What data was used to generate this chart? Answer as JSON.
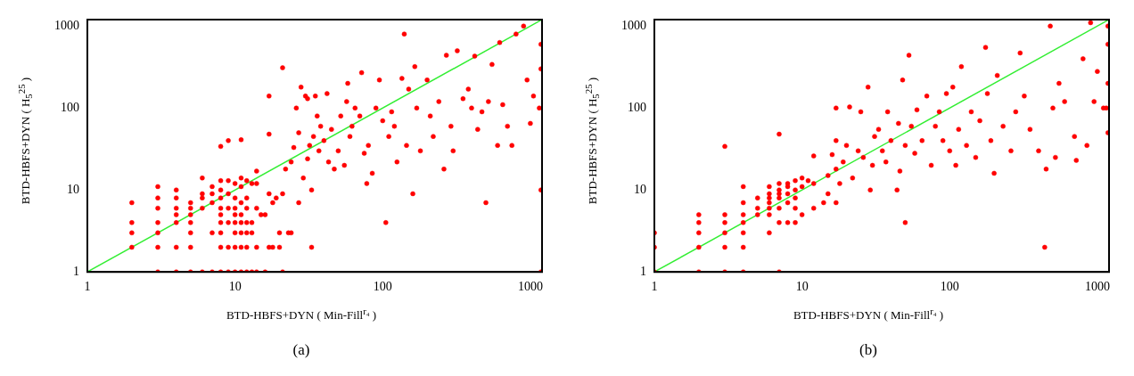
{
  "chart_data": [
    {
      "type": "scatter",
      "xlabel": "BTD-HBFS+DYN ( Min-Fill$^{r₄}$ )",
      "ylabel": "BTD-HBFS+DYN ( H$_{5}$$^{25}$ )",
      "annotations": [
        "(a)"
      ],
      "log": "xy",
      "xlim": [
        1,
        1200
      ],
      "ylim": [
        1,
        1200
      ],
      "xticks": [
        1,
        10,
        100,
        1000
      ],
      "yticks": [
        1,
        10,
        100,
        1000
      ],
      "marker": "circle",
      "series": [
        {
          "type": "scatter",
          "color": "#ff0000",
          "x": [
            2,
            2,
            2,
            2,
            3,
            3,
            3,
            3,
            3,
            3,
            3,
            4,
            4,
            4,
            4,
            4,
            4,
            4,
            5,
            5,
            5,
            5,
            5,
            5,
            5,
            6,
            6,
            6,
            6,
            6,
            7,
            7,
            7,
            7,
            7,
            8,
            8,
            8,
            8,
            8,
            8,
            8,
            8,
            8,
            8,
            9,
            9,
            9,
            9,
            9,
            9,
            9,
            10,
            10,
            10,
            10,
            10,
            10,
            10,
            10,
            11,
            11,
            11,
            11,
            11,
            11,
            11,
            11,
            11,
            12,
            12,
            12,
            12,
            12,
            12,
            12,
            13,
            13,
            13,
            13,
            14,
            14,
            14,
            14,
            14,
            15,
            16,
            16,
            17,
            17,
            17,
            17,
            18,
            18,
            19,
            20,
            20,
            21,
            21,
            21,
            22,
            23,
            24,
            24,
            25,
            26,
            27,
            27,
            28,
            29,
            30,
            31,
            31,
            32,
            33,
            33,
            34,
            35,
            36,
            37,
            38,
            40,
            42,
            43,
            45,
            47,
            50,
            52,
            55,
            57,
            58,
            60,
            62,
            65,
            70,
            72,
            75,
            78,
            80,
            85,
            90,
            95,
            100,
            105,
            110,
            115,
            120,
            125,
            135,
            140,
            145,
            150,
            160,
            165,
            170,
            180,
            200,
            210,
            220,
            240,
            260,
            270,
            290,
            300,
            320,
            350,
            380,
            400,
            420,
            440,
            470,
            500,
            520,
            550,
            600,
            620,
            650,
            700,
            750,
            800,
            900,
            950,
            1000,
            1050,
            1150,
            1180,
            1180,
            1180,
            1180
          ],
          "values": [
            2,
            3,
            4,
            7,
            2,
            3,
            4,
            6,
            8,
            11,
            1,
            1,
            2,
            4,
            5,
            6,
            8,
            10,
            1,
            2,
            3,
            4,
            5,
            6,
            7,
            1,
            6,
            8,
            9,
            14,
            1,
            3,
            7,
            9,
            11,
            1,
            2,
            3,
            4,
            5,
            6,
            8,
            10,
            13,
            34,
            1,
            2,
            4,
            6,
            9,
            13,
            40,
            1,
            2,
            3,
            4,
            5,
            6,
            8,
            12,
            1,
            2,
            3,
            4,
            5,
            7,
            11,
            14,
            41,
            1,
            2,
            3,
            4,
            6,
            8,
            13,
            1,
            3,
            4,
            12,
            1,
            2,
            6,
            12,
            17,
            5,
            1,
            5,
            2,
            9,
            48,
            140,
            2,
            7,
            8,
            2,
            3,
            1,
            9,
            310,
            18,
            3,
            3,
            22,
            33,
            100,
            7,
            50,
            180,
            14,
            140,
            24,
            130,
            35,
            2,
            10,
            45,
            140,
            80,
            30,
            60,
            40,
            150,
            22,
            55,
            18,
            30,
            80,
            20,
            120,
            200,
            45,
            60,
            100,
            80,
            270,
            28,
            12,
            35,
            16,
            100,
            220,
            70,
            4,
            45,
            90,
            60,
            22,
            230,
            800,
            35,
            170,
            9,
            320,
            100,
            30,
            220,
            80,
            45,
            120,
            18,
            440,
            60,
            30,
            500,
            130,
            170,
            100,
            430,
            55,
            90,
            7,
            120,
            340,
            35,
            630,
            110,
            60,
            35,
            800,
            1000,
            220,
            65,
            140,
            100,
            300,
            600,
            10,
            1
          ]
        },
        {
          "type": "line",
          "marker": "none",
          "color": "#33ee33",
          "x": [
            1,
            1200
          ],
          "values": [
            1,
            1200
          ]
        }
      ]
    },
    {
      "type": "scatter",
      "xlabel": "BTD-HBFS+DYN ( Min-Fill$^{r₄}$ )",
      "ylabel": "BTD-HBFS+DYN ( H$_{5}$$^{25}$ )",
      "annotations": [
        "(b)"
      ],
      "log": "xy",
      "xlim": [
        1,
        1200
      ],
      "ylim": [
        1,
        1200
      ],
      "xticks": [
        1,
        10,
        100,
        1000
      ],
      "yticks": [
        1,
        10,
        100,
        1000
      ],
      "marker": "circle",
      "series": [
        {
          "type": "scatter",
          "color": "#ff0000",
          "x": [
            1,
            1,
            1,
            2,
            2,
            2,
            2,
            2,
            3,
            3,
            3,
            3,
            3,
            3,
            4,
            4,
            4,
            4,
            4,
            4,
            4,
            5,
            5,
            5,
            6,
            6,
            6,
            6,
            6,
            6,
            6,
            7,
            7,
            7,
            7,
            7,
            7,
            7,
            7,
            8,
            8,
            8,
            8,
            8,
            9,
            9,
            9,
            9,
            9,
            10,
            10,
            10,
            11,
            12,
            12,
            12,
            14,
            15,
            15,
            16,
            17,
            17,
            17,
            17,
            18,
            19,
            20,
            21,
            22,
            24,
            25,
            26,
            28,
            29,
            30,
            31,
            33,
            35,
            37,
            38,
            40,
            44,
            45,
            46,
            48,
            50,
            50,
            53,
            55,
            58,
            60,
            65,
            70,
            75,
            80,
            85,
            90,
            95,
            100,
            105,
            110,
            115,
            120,
            130,
            140,
            150,
            160,
            175,
            180,
            190,
            200,
            210,
            230,
            260,
            280,
            300,
            320,
            350,
            400,
            440,
            450,
            480,
            500,
            520,
            550,
            600,
            700,
            720,
            800,
            850,
            900,
            950,
            1000,
            1100,
            1150,
            1180,
            1180,
            1180,
            1180
          ],
          "values": [
            1,
            2,
            3,
            1,
            2,
            3,
            4,
            5,
            1,
            2,
            3,
            4,
            5,
            34,
            1,
            2,
            3,
            4,
            5,
            7,
            11,
            5,
            6,
            8,
            3,
            5,
            6,
            7,
            8,
            9,
            11,
            1,
            4,
            6,
            8,
            9,
            10,
            12,
            48,
            4,
            7,
            9,
            11,
            12,
            4,
            6,
            8,
            10,
            13,
            5,
            11,
            14,
            13,
            6,
            12,
            26,
            7,
            9,
            15,
            27,
            7,
            18,
            40,
            100,
            12,
            22,
            35,
            103,
            14,
            30,
            90,
            25,
            180,
            10,
            20,
            45,
            55,
            30,
            22,
            90,
            40,
            10,
            65,
            17,
            220,
            4,
            35,
            440,
            60,
            28,
            95,
            40,
            140,
            20,
            60,
            90,
            40,
            150,
            30,
            180,
            20,
            55,
            320,
            35,
            90,
            25,
            70,
            550,
            150,
            40,
            16,
            250,
            60,
            30,
            90,
            470,
            140,
            55,
            30,
            2,
            18,
            1000,
            100,
            25,
            200,
            120,
            45,
            23,
            400,
            35,
            1100,
            120,
            280,
            100,
            100,
            50,
            200,
            600,
            1000
          ]
        },
        {
          "type": "line",
          "marker": "none",
          "color": "#33ee33",
          "x": [
            1,
            1200
          ],
          "values": [
            1,
            1200
          ]
        }
      ]
    }
  ]
}
